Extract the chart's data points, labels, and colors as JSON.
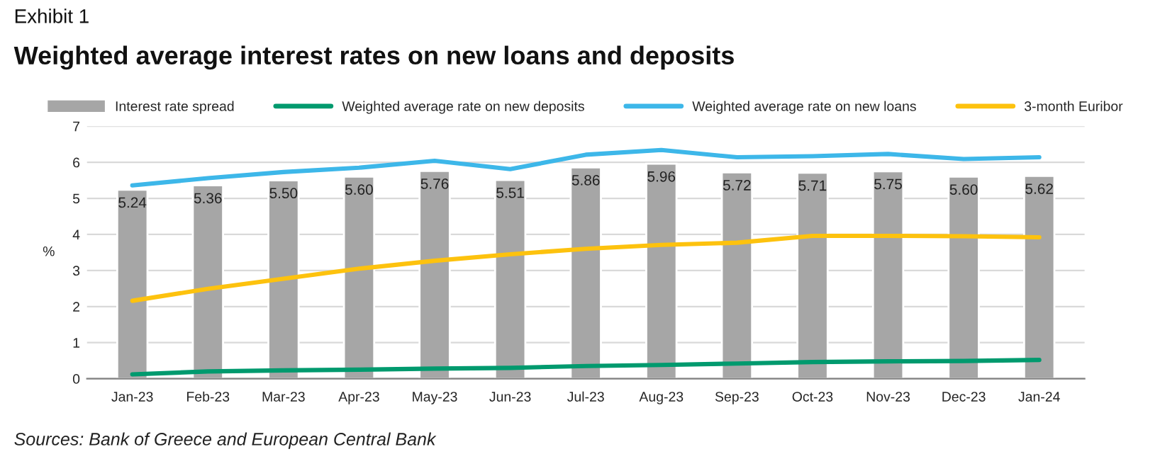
{
  "chart_data": {
    "type": "bar",
    "subtitle": "Exhibit 1",
    "title": "Weighted average interest rates on new loans and deposits",
    "ylabel": "%",
    "categories": [
      "Jan-23",
      "Feb-23",
      "Mar-23",
      "Apr-23",
      "May-23",
      "Jun-23",
      "Jul-23",
      "Aug-23",
      "Sep-23",
      "Oct-23",
      "Nov-23",
      "Dec-23",
      "Jan-24"
    ],
    "series": [
      {
        "name": "Interest rate spread",
        "color": "#a6a6a6",
        "values": [
          5.24,
          5.36,
          5.5,
          5.6,
          5.76,
          5.51,
          5.86,
          5.96,
          5.72,
          5.71,
          5.75,
          5.6,
          5.62
        ],
        "value_labels": [
          "5.24",
          "5.36",
          "5.50",
          "5.60",
          "5.76",
          "5.51",
          "5.86",
          "5.96",
          "5.72",
          "5.71",
          "5.75",
          "5.60",
          "5.62"
        ]
      },
      {
        "name": "Weighted average rate on new deposits",
        "type": "line",
        "color": "#009a6e",
        "values": [
          0.12,
          0.2,
          0.23,
          0.25,
          0.28,
          0.3,
          0.35,
          0.38,
          0.42,
          0.46,
          0.48,
          0.49,
          0.52
        ]
      },
      {
        "name": "Weighted average rate on new loans",
        "type": "line",
        "color": "#3db7e9",
        "values": [
          5.36,
          5.56,
          5.73,
          5.85,
          6.04,
          5.81,
          6.21,
          6.34,
          6.14,
          6.17,
          6.23,
          6.09,
          6.14
        ]
      },
      {
        "name": "3-month Euribor",
        "type": "line",
        "color": "#fdc20e",
        "values": [
          2.16,
          2.49,
          2.77,
          3.05,
          3.27,
          3.45,
          3.6,
          3.71,
          3.77,
          3.96,
          3.96,
          3.95,
          3.92
        ]
      }
    ],
    "ylim": [
      0,
      7
    ],
    "yticks": [
      0,
      1,
      2,
      3,
      4,
      5,
      6,
      7
    ],
    "grid": "y",
    "legend": "top",
    "marker": "none",
    "line_style": "solid",
    "annotations": [
      "Sources: Bank of Greece and European Central Bank"
    ]
  }
}
